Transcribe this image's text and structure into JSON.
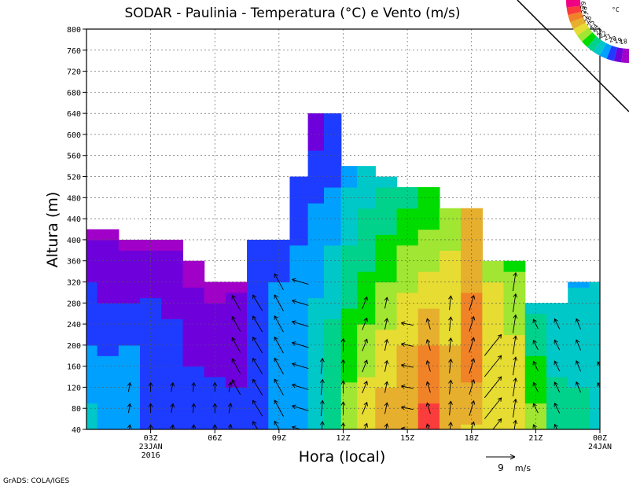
{
  "title": "SODAR - Paulinia - Temperatura (°C) e Vento (m/s)",
  "footer": "GrADS: COLA/IGES",
  "chart_data": {
    "type": "heatmap",
    "title": "SODAR - Paulinia - Temperatura (°C) e Vento (m/s)",
    "xlabel": "Hora (local)",
    "ylabel": "Altura (m)",
    "x_range_hours": [
      0,
      24
    ],
    "ylim": [
      40,
      800
    ],
    "y_ticks": [
      40,
      80,
      120,
      160,
      200,
      240,
      280,
      320,
      360,
      400,
      440,
      480,
      520,
      560,
      600,
      640,
      680,
      720,
      760,
      800
    ],
    "x_ticks": [
      {
        "hour": 3,
        "label": "03Z",
        "date": "23JAN",
        "year": "2016"
      },
      {
        "hour": 6,
        "label": "06Z"
      },
      {
        "hour": 9,
        "label": "09Z"
      },
      {
        "hour": 12,
        "label": "12Z"
      },
      {
        "hour": 15,
        "label": "15Z"
      },
      {
        "hour": 18,
        "label": "18Z"
      },
      {
        "hour": 21,
        "label": "21Z"
      },
      {
        "hour": 24,
        "label": "00Z",
        "date": "24JAN"
      }
    ],
    "grid": true,
    "colorbar": {
      "unit": "°C",
      "labels": [
        "18",
        "19",
        "20",
        "21",
        "22",
        "23",
        "24",
        "25",
        "26",
        "27",
        "28",
        "29"
      ],
      "colors": [
        "#a000c8",
        "#6e00dc",
        "#1e3cff",
        "#00a0ff",
        "#00c8c8",
        "#00d28c",
        "#00dc00",
        "#a0e632",
        "#e6dc32",
        "#e6af2d",
        "#f08228",
        "#fa3c3c",
        "#f00082"
      ]
    },
    "wind_reference": {
      "speed": 9,
      "unit": "m/s"
    },
    "profiles": [
      {
        "hour": 0.0,
        "top": 420,
        "temps": [
          [
            40,
            21.5
          ],
          [
            200,
            20.0
          ],
          [
            320,
            19.0
          ],
          [
            420,
            17.8
          ]
        ]
      },
      {
        "hour": 1.0,
        "top": 420,
        "temps": [
          [
            40,
            20.5
          ],
          [
            120,
            20.6
          ],
          [
            240,
            19.4
          ],
          [
            340,
            18.5
          ],
          [
            420,
            17.8
          ]
        ]
      },
      {
        "hour": 2.0,
        "top": 400,
        "temps": [
          [
            40,
            20.0
          ],
          [
            140,
            20.3
          ],
          [
            200,
            20.0
          ],
          [
            280,
            19.0
          ],
          [
            400,
            17.8
          ]
        ]
      },
      {
        "hour": 3.0,
        "top": 400,
        "temps": [
          [
            40,
            19.6
          ],
          [
            140,
            19.8
          ],
          [
            240,
            19.6
          ],
          [
            300,
            18.8
          ],
          [
            400,
            17.8
          ]
        ]
      },
      {
        "hour": 4.0,
        "top": 400,
        "temps": [
          [
            40,
            19.3
          ],
          [
            140,
            19.6
          ],
          [
            220,
            19.2
          ],
          [
            300,
            18.6
          ],
          [
            400,
            17.8
          ]
        ]
      },
      {
        "hour": 5.0,
        "top": 360,
        "temps": [
          [
            40,
            19.0
          ],
          [
            140,
            19.2
          ],
          [
            200,
            18.6
          ],
          [
            280,
            18.1
          ],
          [
            360,
            17.8
          ]
        ]
      },
      {
        "hour": 6.0,
        "top": 320,
        "temps": [
          [
            40,
            19.0
          ],
          [
            140,
            19.0
          ],
          [
            200,
            18.4
          ],
          [
            320,
            17.8
          ]
        ]
      },
      {
        "hour": 7.0,
        "top": 320,
        "temps": [
          [
            40,
            19.4
          ],
          [
            140,
            18.9
          ],
          [
            240,
            18.4
          ],
          [
            320,
            17.9
          ]
        ]
      },
      {
        "hour": 8.0,
        "top": 400,
        "temps": [
          [
            40,
            20.0
          ],
          [
            160,
            19.6
          ],
          [
            280,
            19.0
          ],
          [
            400,
            19.0
          ]
        ]
      },
      {
        "hour": 9.0,
        "top": 400,
        "temps": [
          [
            40,
            20.5
          ],
          [
            200,
            20.3
          ],
          [
            320,
            20.0
          ],
          [
            400,
            19.2
          ]
        ]
      },
      {
        "hour": 10.0,
        "top": 520,
        "temps": [
          [
            40,
            21.0
          ],
          [
            200,
            20.7
          ],
          [
            340,
            20.5
          ],
          [
            400,
            19.9
          ],
          [
            520,
            19.2
          ]
        ]
      },
      {
        "hour": 10.7,
        "top": 640,
        "temps": [
          [
            40,
            21.8
          ],
          [
            240,
            21.2
          ],
          [
            420,
            20.4
          ],
          [
            560,
            19.2
          ],
          [
            640,
            18.0
          ]
        ]
      },
      {
        "hour": 11.5,
        "top": 640,
        "temps": [
          [
            40,
            22.6
          ],
          [
            200,
            22.3
          ],
          [
            360,
            21.3
          ],
          [
            520,
            19.8
          ],
          [
            640,
            19.0
          ]
        ]
      },
      {
        "hour": 12.3,
        "top": 540,
        "temps": [
          [
            40,
            24.5
          ],
          [
            200,
            23.6
          ],
          [
            320,
            22.6
          ],
          [
            440,
            21.6
          ],
          [
            540,
            20.6
          ]
        ]
      },
      {
        "hour": 13.0,
        "top": 540,
        "temps": [
          [
            40,
            26.0
          ],
          [
            240,
            24.0
          ],
          [
            360,
            22.8
          ],
          [
            540,
            21.3
          ]
        ]
      },
      {
        "hour": 14.0,
        "top": 520,
        "temps": [
          [
            40,
            26.4
          ],
          [
            160,
            25.8
          ],
          [
            300,
            24.2
          ],
          [
            520,
            21.8
          ]
        ]
      },
      {
        "hour": 15.0,
        "top": 500,
        "temps": [
          [
            40,
            27.0
          ],
          [
            200,
            26.0
          ],
          [
            340,
            24.6
          ],
          [
            500,
            22.5
          ]
        ]
      },
      {
        "hour": 16.0,
        "top": 500,
        "temps": [
          [
            40,
            28.3
          ],
          [
            160,
            27.6
          ],
          [
            280,
            25.8
          ],
          [
            500,
            23.0
          ]
        ]
      },
      {
        "hour": 17.0,
        "top": 460,
        "temps": [
          [
            40,
            26.4
          ],
          [
            200,
            26.0
          ],
          [
            300,
            25.5
          ],
          [
            460,
            24.5
          ]
        ]
      },
      {
        "hour": 18.0,
        "top": 460,
        "temps": [
          [
            40,
            25.8
          ],
          [
            140,
            27.2
          ],
          [
            300,
            27.0
          ],
          [
            460,
            26.6
          ]
        ]
      },
      {
        "hour": 19.0,
        "top": 360,
        "temps": [
          [
            40,
            25.6
          ],
          [
            200,
            25.6
          ],
          [
            360,
            24.8
          ]
        ]
      },
      {
        "hour": 20.0,
        "top": 360,
        "temps": [
          [
            40,
            25.0
          ],
          [
            200,
            25.2
          ],
          [
            360,
            23.8
          ]
        ]
      },
      {
        "hour": 21.0,
        "top": 280,
        "temps": [
          [
            40,
            24.5
          ],
          [
            160,
            23.3
          ],
          [
            280,
            21.8
          ]
        ]
      },
      {
        "hour": 22.0,
        "top": 280,
        "temps": [
          [
            40,
            22.8
          ],
          [
            160,
            21.8
          ],
          [
            280,
            21.4
          ]
        ]
      },
      {
        "hour": 23.0,
        "top": 320,
        "temps": [
          [
            40,
            22.2
          ],
          [
            200,
            21.8
          ],
          [
            320,
            20.9
          ]
        ]
      },
      {
        "hour": 24.0,
        "top": 320,
        "temps": [
          [
            40,
            21.8
          ],
          [
            200,
            21.5
          ],
          [
            320,
            21.0
          ]
        ]
      }
    ],
    "wind_vectors": [
      {
        "hour": 2.0,
        "heights": [
          40,
          80,
          120
        ],
        "dir": [
          0.15,
          1.0
        ],
        "speed": 1.3
      },
      {
        "hour": 3.0,
        "heights": [
          40,
          80,
          120
        ],
        "dir": [
          0.0,
          1.0
        ],
        "speed": 1.3
      },
      {
        "hour": 4.0,
        "heights": [
          40,
          80,
          120
        ],
        "dir": [
          0.2,
          1.0
        ],
        "speed": 1.3
      },
      {
        "hour": 5.0,
        "heights": [
          40,
          80,
          120
        ],
        "dir": [
          0.1,
          1.0
        ],
        "speed": 1.3
      },
      {
        "hour": 6.0,
        "heights": [
          40,
          80,
          120
        ],
        "dir": [
          0.0,
          1.0
        ],
        "speed": 1.3
      },
      {
        "hour": 6.7,
        "heights": [
          40,
          80,
          120
        ],
        "dir": [
          0.2,
          1.0
        ],
        "speed": 1.4
      },
      {
        "hour": 7.0,
        "heights": [
          120,
          160,
          200,
          240,
          280
        ],
        "dir": [
          -0.55,
          1.0
        ],
        "speed": 2.4
      },
      {
        "hour": 8.0,
        "heights": [
          40,
          80,
          120,
          160,
          200,
          240,
          280
        ],
        "dir": [
          -0.6,
          1.0
        ],
        "speed": 2.6
      },
      {
        "hour": 9.0,
        "heights": [
          40,
          80,
          120,
          160,
          200,
          240,
          280,
          320
        ],
        "dir": [
          -0.55,
          1.0
        ],
        "speed": 2.6
      },
      {
        "hour": 10.0,
        "heights": [
          40,
          80,
          120,
          160,
          200,
          240,
          280,
          320
        ],
        "dir": [
          -1.0,
          0.3
        ],
        "speed": 2.4
      },
      {
        "hour": 11.0,
        "heights": [
          40,
          80,
          120,
          160
        ],
        "dir": [
          0.1,
          1.0
        ],
        "speed": 2.2
      },
      {
        "hour": 12.0,
        "heights": [
          40,
          80,
          120,
          160,
          200
        ],
        "dir": [
          0.0,
          1.0
        ],
        "speed": 1.8
      },
      {
        "hour": 13.0,
        "heights": [
          40,
          80,
          120,
          160,
          200,
          240,
          280
        ],
        "dir": [
          0.4,
          1.0
        ],
        "speed": 1.8
      },
      {
        "hour": 14.0,
        "heights": [
          40,
          80,
          120,
          160,
          200,
          240,
          280
        ],
        "dir": [
          0.2,
          1.0
        ],
        "speed": 1.6
      },
      {
        "hour": 15.0,
        "heights": [
          40,
          80,
          120,
          160,
          200,
          240
        ],
        "dir": [
          -1.0,
          0.2
        ],
        "speed": 1.7
      },
      {
        "hour": 16.0,
        "heights": [
          40,
          80,
          120,
          160,
          200,
          240
        ],
        "dir": [
          -0.3,
          1.0
        ],
        "speed": 1.6
      },
      {
        "hour": 17.0,
        "heights": [
          40,
          80,
          120,
          160,
          200,
          240,
          280
        ],
        "dir": [
          0.1,
          1.0
        ],
        "speed": 2.0
      },
      {
        "hour": 18.0,
        "heights": [
          40,
          80,
          120,
          160,
          200,
          240,
          280
        ],
        "dir": [
          0.3,
          1.0
        ],
        "speed": 2.2
      },
      {
        "hour": 19.0,
        "heights": [
          40,
          80,
          120,
          160,
          200
        ],
        "dir": [
          0.8,
          1.0
        ],
        "speed": 3.8
      },
      {
        "hour": 20.0,
        "heights": [
          40,
          80,
          120,
          160,
          200,
          240,
          280,
          320
        ],
        "dir": [
          0.15,
          1.0
        ],
        "speed": 2.6
      },
      {
        "hour": 21.0,
        "heights": [
          40,
          80,
          120,
          160,
          200,
          240
        ],
        "dir": [
          -0.5,
          1.0
        ],
        "speed": 1.5
      },
      {
        "hour": 22.0,
        "heights": [
          40,
          80,
          120,
          160,
          200,
          240
        ],
        "dir": [
          -0.5,
          1.0
        ],
        "speed": 1.6
      },
      {
        "hour": 23.0,
        "heights": [
          120,
          160,
          200,
          240
        ],
        "dir": [
          -0.4,
          1.0
        ],
        "speed": 1.6
      },
      {
        "hour": 24.0,
        "heights": [
          120,
          160
        ],
        "dir": [
          -0.5,
          1.0
        ],
        "speed": 1.4
      }
    ]
  }
}
